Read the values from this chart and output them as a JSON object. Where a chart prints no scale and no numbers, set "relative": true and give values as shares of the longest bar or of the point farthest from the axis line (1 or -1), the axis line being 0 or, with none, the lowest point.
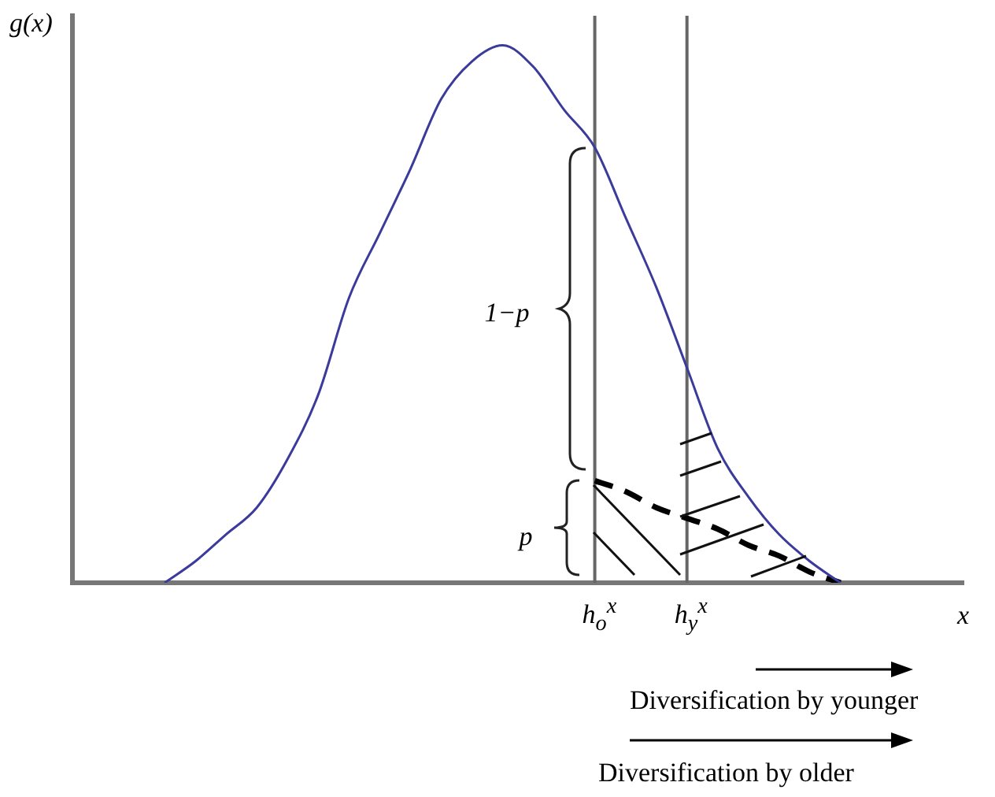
{
  "chart_data": {
    "type": "line",
    "relative": true,
    "ylabel": "g(x)",
    "xlabel": "x",
    "categories": [
      null,
      null,
      null,
      null,
      null,
      null,
      null,
      null,
      null,
      null,
      null,
      null,
      null,
      null,
      null,
      null,
      null,
      "h$_{o}$$^{x}$",
      null,
      null,
      "h$_{y}$$^{x}$",
      null,
      null,
      null,
      null,
      null,
      null,
      null,
      null,
      null
    ],
    "series": [
      {
        "color": "#3b3b9c",
        "line_style": "solid",
        "values": [
          null,
          null,
          null,
          0,
          0.04,
          0.09,
          0.14,
          0.23,
          0.35,
          0.53,
          0.65,
          0.77,
          0.9,
          0.97,
          1,
          0.96,
          0.88,
          0.81,
          0.68,
          0.55,
          0.4,
          0.25,
          0.16,
          0.09,
          0.04,
          0,
          null,
          null,
          null,
          null
        ]
      },
      {
        "color": "#000000",
        "line_style": "dashed",
        "values": [
          null,
          null,
          null,
          null,
          null,
          null,
          null,
          null,
          null,
          null,
          null,
          null,
          null,
          null,
          null,
          null,
          null,
          0.19,
          0.17,
          0.14,
          0.12,
          0.1,
          0.07,
          0.05,
          0.02,
          0,
          null,
          null,
          null,
          null
        ]
      }
    ],
    "ref_lines": [
      {
        "axis": "x",
        "value": "h$_{o}$$^{x}$",
        "color": "#666666"
      },
      {
        "axis": "x",
        "value": "h$_{y}$$^{x}$",
        "color": "#666666"
      }
    ],
    "annotations": [
      "1−p",
      "p",
      "Diversification by younger",
      "Diversification by older"
    ],
    "grid": false,
    "legend": false,
    "marker": "none"
  }
}
